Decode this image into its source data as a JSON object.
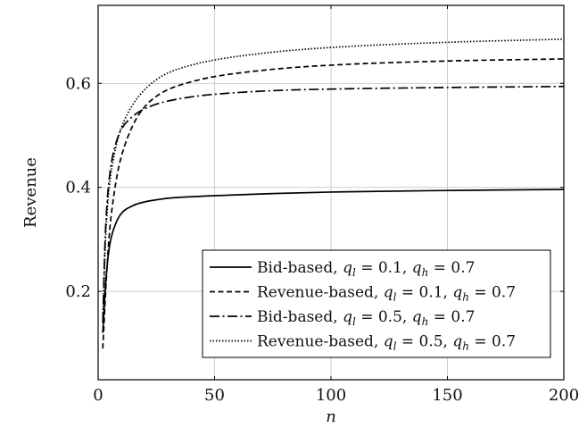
{
  "chart_data": {
    "type": "line",
    "title": "",
    "xlabel": "n",
    "ylabel": "Revenue",
    "xlim": [
      0,
      200
    ],
    "ylim": [
      0.03,
      0.75
    ],
    "xticks": [
      0,
      50,
      100,
      150,
      200
    ],
    "yticks": [
      0.2,
      0.4,
      0.6
    ],
    "grid": true,
    "legend_position": "bottom-right",
    "series": [
      {
        "name": "Bid-based, q_l = 0.1, q_h = 0.7",
        "legend_prefix": "Bid-based, ",
        "legend_ql": "0.1",
        "legend_qh": "0.7",
        "dash": "solid",
        "color": "#000000",
        "x": [
          2,
          3,
          4,
          5,
          6,
          8,
          10,
          15,
          20,
          25,
          30,
          40,
          50,
          75,
          100,
          150,
          200
        ],
        "y": [
          0.12,
          0.2,
          0.255,
          0.29,
          0.31,
          0.335,
          0.35,
          0.365,
          0.372,
          0.376,
          0.379,
          0.382,
          0.384,
          0.388,
          0.391,
          0.394,
          0.396
        ]
      },
      {
        "name": "Revenue-based, q_l = 0.1, q_h = 0.7",
        "legend_prefix": "Revenue-based, ",
        "legend_ql": "0.1",
        "legend_qh": "0.7",
        "dash": "dashed",
        "color": "#000000",
        "x": [
          2,
          3,
          4,
          5,
          6,
          8,
          10,
          15,
          20,
          25,
          30,
          40,
          50,
          75,
          100,
          150,
          200
        ],
        "y": [
          0.09,
          0.18,
          0.26,
          0.32,
          0.36,
          0.42,
          0.46,
          0.52,
          0.555,
          0.575,
          0.588,
          0.603,
          0.613,
          0.627,
          0.635,
          0.643,
          0.647
        ]
      },
      {
        "name": "Bid-based, q_l = 0.5, q_h = 0.7",
        "legend_prefix": "Bid-based, ",
        "legend_ql": "0.5",
        "legend_qh": "0.7",
        "dash": "dashdot",
        "color": "#000000",
        "x": [
          2,
          3,
          4,
          5,
          6,
          8,
          10,
          15,
          20,
          25,
          30,
          40,
          50,
          75,
          100,
          150,
          200
        ],
        "y": [
          0.14,
          0.3,
          0.38,
          0.425,
          0.455,
          0.49,
          0.512,
          0.537,
          0.551,
          0.56,
          0.566,
          0.574,
          0.579,
          0.586,
          0.589,
          0.592,
          0.594
        ]
      },
      {
        "name": "Revenue-based, q_l = 0.5, q_h = 0.7",
        "legend_prefix": "Revenue-based, ",
        "legend_ql": "0.5",
        "legend_qh": "0.7",
        "dash": "dotted",
        "color": "#000000",
        "x": [
          2,
          3,
          4,
          5,
          6,
          8,
          10,
          15,
          20,
          25,
          30,
          40,
          50,
          75,
          100,
          150,
          200
        ],
        "y": [
          0.14,
          0.28,
          0.36,
          0.41,
          0.44,
          0.485,
          0.515,
          0.56,
          0.588,
          0.607,
          0.62,
          0.635,
          0.645,
          0.66,
          0.669,
          0.679,
          0.685
        ]
      }
    ]
  }
}
